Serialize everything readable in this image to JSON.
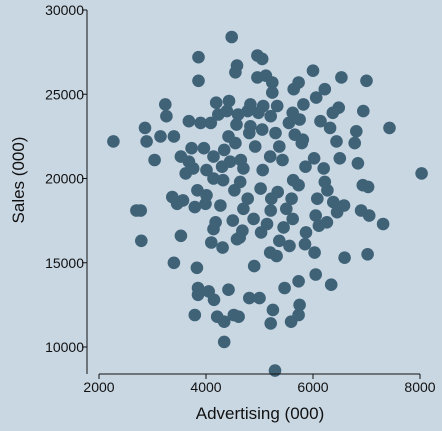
{
  "chart_data": {
    "type": "scatter",
    "xlabel": "Advertising (000)",
    "ylabel": "Sales (000)",
    "xlim": [
      2000,
      8000
    ],
    "ylim": [
      8500,
      30000
    ],
    "xticks": [
      2000,
      4000,
      6000,
      8000
    ],
    "yticks": [
      10000,
      15000,
      20000,
      25000,
      30000
    ],
    "x_tick_labels": [
      "2000",
      "4000",
      "6000",
      "8000"
    ],
    "y_tick_labels": [
      "10000",
      "15000",
      "20000",
      "25000",
      "30000"
    ],
    "grid": false,
    "colors": {
      "background": "#c9d7e3",
      "marker": "#3f6277",
      "axis": "#111111"
    },
    "points": [
      [
        4480,
        28400
      ],
      [
        3860,
        27200
      ],
      [
        4580,
        26700
      ],
      [
        4960,
        27300
      ],
      [
        5050,
        27100
      ],
      [
        4550,
        26300
      ],
      [
        4960,
        26000
      ],
      [
        5120,
        26100
      ],
      [
        3860,
        25800
      ],
      [
        5240,
        25700
      ],
      [
        5730,
        25700
      ],
      [
        6000,
        26400
      ],
      [
        6530,
        26000
      ],
      [
        7000,
        25800
      ],
      [
        5640,
        25300
      ],
      [
        5240,
        25100
      ],
      [
        6220,
        25300
      ],
      [
        6060,
        24800
      ],
      [
        3240,
        24400
      ],
      [
        4190,
        24500
      ],
      [
        4430,
        24600
      ],
      [
        4830,
        24400
      ],
      [
        5070,
        24300
      ],
      [
        5330,
        24300
      ],
      [
        4390,
        24000
      ],
      [
        4780,
        24000
      ],
      [
        5820,
        24400
      ],
      [
        6480,
        24200
      ],
      [
        6940,
        24000
      ],
      [
        3260,
        23700
      ],
      [
        3900,
        23300
      ],
      [
        4230,
        23800
      ],
      [
        4600,
        23800
      ],
      [
        4980,
        23900
      ],
      [
        5210,
        23700
      ],
      [
        5620,
        23900
      ],
      [
        5750,
        23500
      ],
      [
        6370,
        23900
      ],
      [
        6140,
        23400
      ],
      [
        2860,
        23000
      ],
      [
        3680,
        23400
      ],
      [
        4090,
        23300
      ],
      [
        4570,
        23200
      ],
      [
        4830,
        23100
      ],
      [
        5050,
        22900
      ],
      [
        5550,
        23300
      ],
      [
        6320,
        23000
      ],
      [
        6810,
        22800
      ],
      [
        7430,
        23000
      ],
      [
        2270,
        22200
      ],
      [
        3150,
        22500
      ],
      [
        3400,
        22500
      ],
      [
        4420,
        22500
      ],
      [
        4810,
        22700
      ],
      [
        5300,
        22700
      ],
      [
        5660,
        22600
      ],
      [
        5810,
        22300
      ],
      [
        6440,
        22200
      ],
      [
        3730,
        21800
      ],
      [
        3960,
        21800
      ],
      [
        4340,
        21700
      ],
      [
        4550,
        22100
      ],
      [
        4920,
        21900
      ],
      [
        5370,
        21900
      ],
      [
        5790,
        22100
      ],
      [
        6780,
        22100
      ],
      [
        2890,
        22200
      ],
      [
        3040,
        21100
      ],
      [
        3530,
        21300
      ],
      [
        3680,
        21000
      ],
      [
        4140,
        21300
      ],
      [
        4450,
        21000
      ],
      [
        4650,
        21100
      ],
      [
        5200,
        21300
      ],
      [
        5430,
        21100
      ],
      [
        6020,
        21200
      ],
      [
        6500,
        21200
      ],
      [
        3760,
        20600
      ],
      [
        4010,
        20500
      ],
      [
        4300,
        20700
      ],
      [
        4700,
        20600
      ],
      [
        5060,
        20500
      ],
      [
        5860,
        20700
      ],
      [
        6200,
        20600
      ],
      [
        6840,
        20900
      ],
      [
        8030,
        20300
      ],
      [
        3620,
        20300
      ],
      [
        4140,
        20000
      ],
      [
        4320,
        19900
      ],
      [
        4640,
        19800
      ],
      [
        5630,
        19900
      ],
      [
        6220,
        19800
      ],
      [
        3840,
        19300
      ],
      [
        4010,
        19000
      ],
      [
        4530,
        19300
      ],
      [
        5020,
        19400
      ],
      [
        5340,
        19200
      ],
      [
        5730,
        19600
      ],
      [
        6270,
        19300
      ],
      [
        6930,
        19600
      ],
      [
        7030,
        19500
      ],
      [
        3370,
        18900
      ],
      [
        3570,
        18700
      ],
      [
        3990,
        18500
      ],
      [
        4270,
        18400
      ],
      [
        4780,
        18800
      ],
      [
        5220,
        18800
      ],
      [
        5600,
        18800
      ],
      [
        6080,
        18800
      ],
      [
        6380,
        18600
      ],
      [
        6580,
        18400
      ],
      [
        3460,
        18500
      ],
      [
        3790,
        18300
      ],
      [
        4700,
        18200
      ],
      [
        5210,
        18100
      ],
      [
        5500,
        18200
      ],
      [
        6050,
        17800
      ],
      [
        6450,
        18000
      ],
      [
        6900,
        18100
      ],
      [
        2700,
        18100
      ],
      [
        2780,
        18100
      ],
      [
        4180,
        17400
      ],
      [
        4500,
        17500
      ],
      [
        4890,
        17600
      ],
      [
        5140,
        17300
      ],
      [
        5620,
        17600
      ],
      [
        7050,
        17800
      ],
      [
        7310,
        17300
      ],
      [
        4140,
        17000
      ],
      [
        4680,
        16900
      ],
      [
        5450,
        17100
      ],
      [
        5870,
        16800
      ],
      [
        6110,
        17200
      ],
      [
        6260,
        17400
      ],
      [
        3530,
        16600
      ],
      [
        4100,
        16200
      ],
      [
        4630,
        16500
      ],
      [
        5030,
        16800
      ],
      [
        5370,
        16300
      ],
      [
        5850,
        16100
      ],
      [
        2790,
        16300
      ],
      [
        4310,
        15900
      ],
      [
        4580,
        16400
      ],
      [
        5200,
        15600
      ],
      [
        5320,
        15400
      ],
      [
        5560,
        16000
      ],
      [
        6030,
        15600
      ],
      [
        6590,
        15300
      ],
      [
        7020,
        15500
      ],
      [
        3400,
        15000
      ],
      [
        3830,
        14700
      ],
      [
        4900,
        14800
      ],
      [
        6050,
        14300
      ],
      [
        5730,
        13900
      ],
      [
        6340,
        13700
      ],
      [
        3850,
        13500
      ],
      [
        3850,
        13100
      ],
      [
        4050,
        13300
      ],
      [
        4420,
        13400
      ],
      [
        4810,
        12900
      ],
      [
        5000,
        12900
      ],
      [
        5470,
        13500
      ],
      [
        4150,
        12800
      ],
      [
        5750,
        12500
      ],
      [
        3790,
        11900
      ],
      [
        4210,
        11800
      ],
      [
        5250,
        12200
      ],
      [
        4340,
        11500
      ],
      [
        4610,
        11800
      ],
      [
        4520,
        11900
      ],
      [
        5210,
        11400
      ],
      [
        5590,
        11500
      ],
      [
        5730,
        11900
      ],
      [
        4340,
        10300
      ],
      [
        5290,
        8600
      ]
    ]
  }
}
